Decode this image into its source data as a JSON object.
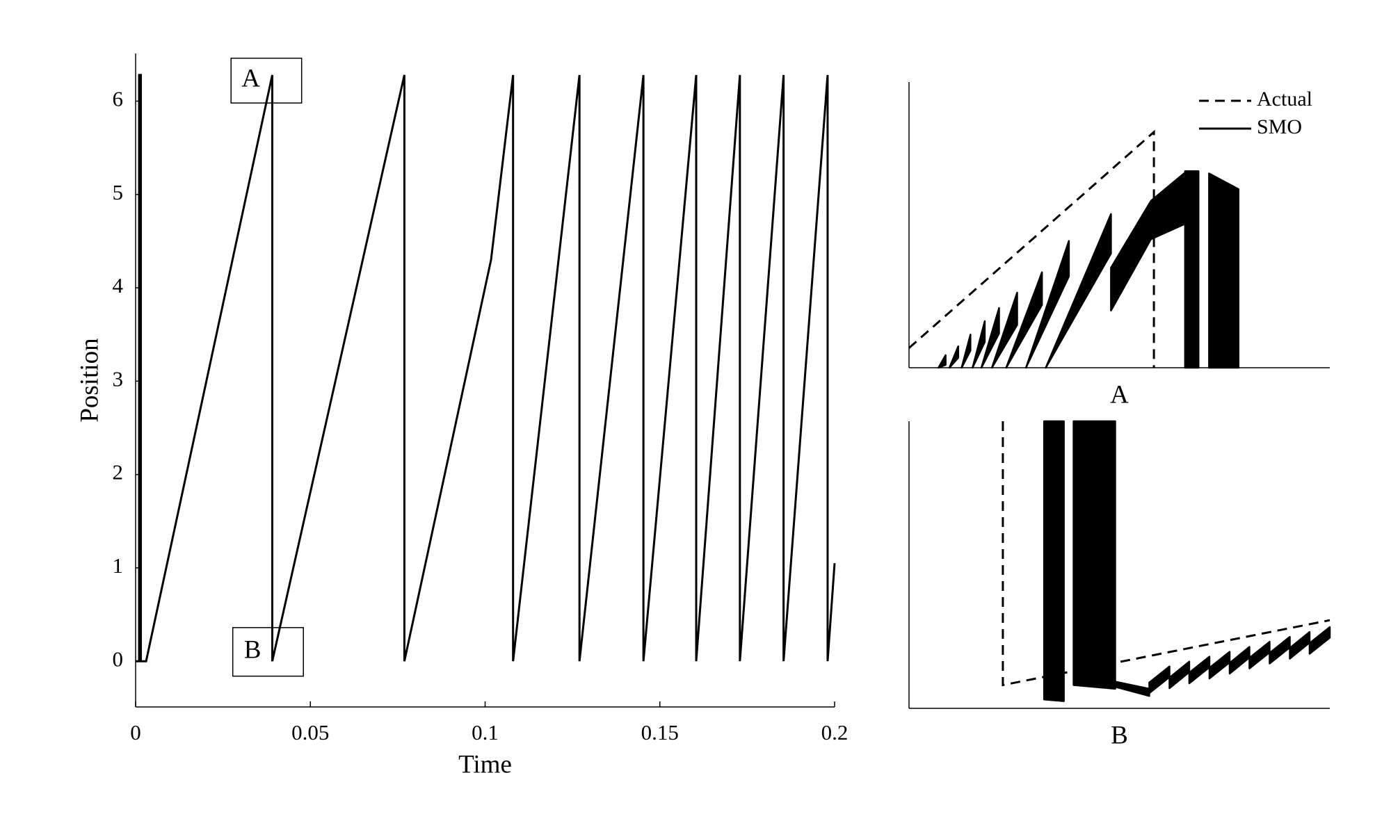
{
  "chart_data": [
    {
      "type": "line",
      "xlabel": "Time",
      "ylabel": "Position",
      "x": [
        0,
        0.001,
        0.001,
        0.0015,
        0.0015,
        0.003,
        0.0391,
        0.0391,
        0.0769,
        0.0769,
        0.1017,
        0.108,
        0.108,
        0.127,
        0.127,
        0.1453,
        0.1453,
        0.1604,
        0.1604,
        0.1729,
        0.1729,
        0.1854,
        0.1854,
        0.198,
        0.198,
        0.2
      ],
      "values": [
        0,
        0,
        6.28,
        6.28,
        0,
        0,
        6.28,
        0,
        6.28,
        0,
        4.3,
        6.28,
        0,
        6.28,
        0,
        6.28,
        0,
        6.28,
        0,
        6.28,
        0,
        6.28,
        0,
        6.28,
        0,
        1.05
      ],
      "color": "#000000",
      "xlim": [
        0,
        0.2
      ],
      "xticks": [
        0,
        0.05,
        0.1,
        0.15,
        0.2
      ],
      "ylim": [
        -0.49,
        6.51
      ],
      "yticks": [
        0,
        1,
        2,
        3,
        4,
        5,
        6
      ],
      "grid": false,
      "annotations": [
        {
          "text": "A",
          "x": [
            0.0273,
            0.0475
          ],
          "y": [
            5.98,
            6.46
          ]
        },
        {
          "text": "B",
          "x": [
            0.0278,
            0.048
          ],
          "y": [
            -0.16,
            0.36
          ]
        }
      ]
    },
    {
      "type": "line",
      "xlabel": "A",
      "xlim": [
        0,
        100
      ],
      "ylim": [
        0,
        100
      ],
      "legend": "upper right",
      "series": [
        {
          "name": "Actual",
          "color": "#000000",
          "style": "dashed",
          "x": [
            0,
            58.2,
            58.2
          ],
          "values": [
            6.9,
            82.5,
            0
          ]
        },
        {
          "name": "SMO",
          "color": "#000000",
          "style": "solid",
          "x": [
            7,
            8.7,
            null,
            9.6,
            11.7,
            null,
            12.5,
            14.6,
            null,
            15.1,
            18,
            null,
            17.2,
            21.4,
            null,
            19.7,
            25.7,
            null,
            23.1,
            31.6,
            null,
            27.8,
            38,
            null,
            32.5,
            48,
            null,
            48,
            57.5,
            66,
            null,
            65.6,
            68.8,
            null,
            71.3,
            78.3
          ],
          "values": [
            0,
            4.4,
            null,
            0,
            7.5,
            null,
            0,
            11.6,
            null,
            0,
            16.3,
            null,
            0,
            20.9,
            null,
            0,
            26.3,
            null,
            0,
            33.4,
            null,
            0,
            44.4,
            null,
            0,
            53.8,
            null,
            35,
            58.4,
            68.8,
            null,
            68.8,
            68.8,
            null,
            68,
            62.5
          ],
          "lows": [
            0,
            1,
            null,
            0,
            3.5,
            null,
            0,
            6,
            null,
            0,
            9,
            null,
            0,
            12,
            null,
            0,
            15,
            null,
            0,
            22,
            null,
            0,
            32,
            null,
            0,
            40,
            null,
            20,
            45,
            50.6,
            null,
            0,
            0,
            null,
            0,
            0
          ]
        }
      ]
    },
    {
      "type": "line",
      "xlabel": "B",
      "xlim": [
        0,
        100
      ],
      "ylim": [
        0,
        100
      ],
      "series": [
        {
          "color": "#000000",
          "style": "dashed",
          "x": [
            22.3,
            22.3,
            100
          ],
          "values": [
            100,
            8.1,
            30.7
          ]
        },
        {
          "color": "#000000",
          "style": "solid",
          "x": [
            32.1,
            36.8,
            null,
            39.1,
            49,
            null,
            49,
            57.1,
            null,
            57.1,
            61.9,
            null,
            61.9,
            66.6,
            null,
            66.6,
            71.4,
            null,
            71.4,
            76.2,
            null,
            76.2,
            80.9,
            null,
            80.9,
            85.7,
            null,
            85.7,
            90.5,
            null,
            90.5,
            95.2,
            null,
            95.2,
            100
          ],
          "values": [
            100,
            100,
            null,
            100,
            100,
            null,
            9.3,
            6.8,
            null,
            9,
            14.6,
            null,
            10.7,
            16.3,
            null,
            12.4,
            18,
            null,
            14.1,
            19.7,
            null,
            15.8,
            21.4,
            null,
            17.6,
            23.2,
            null,
            19.3,
            24.9,
            null,
            21,
            26.6,
            null,
            22.7,
            28.3
          ],
          "lows": [
            3.1,
            2.5,
            null,
            8.1,
            6.8,
            null,
            7.5,
            4.3,
            null,
            5.3,
            10.9,
            null,
            7,
            12.6,
            null,
            8.7,
            14.3,
            null,
            10.4,
            16,
            null,
            12.1,
            17.7,
            null,
            13.9,
            19.5,
            null,
            15.6,
            21.2,
            null,
            17.3,
            22.9,
            null,
            19,
            24.6
          ]
        }
      ]
    }
  ]
}
